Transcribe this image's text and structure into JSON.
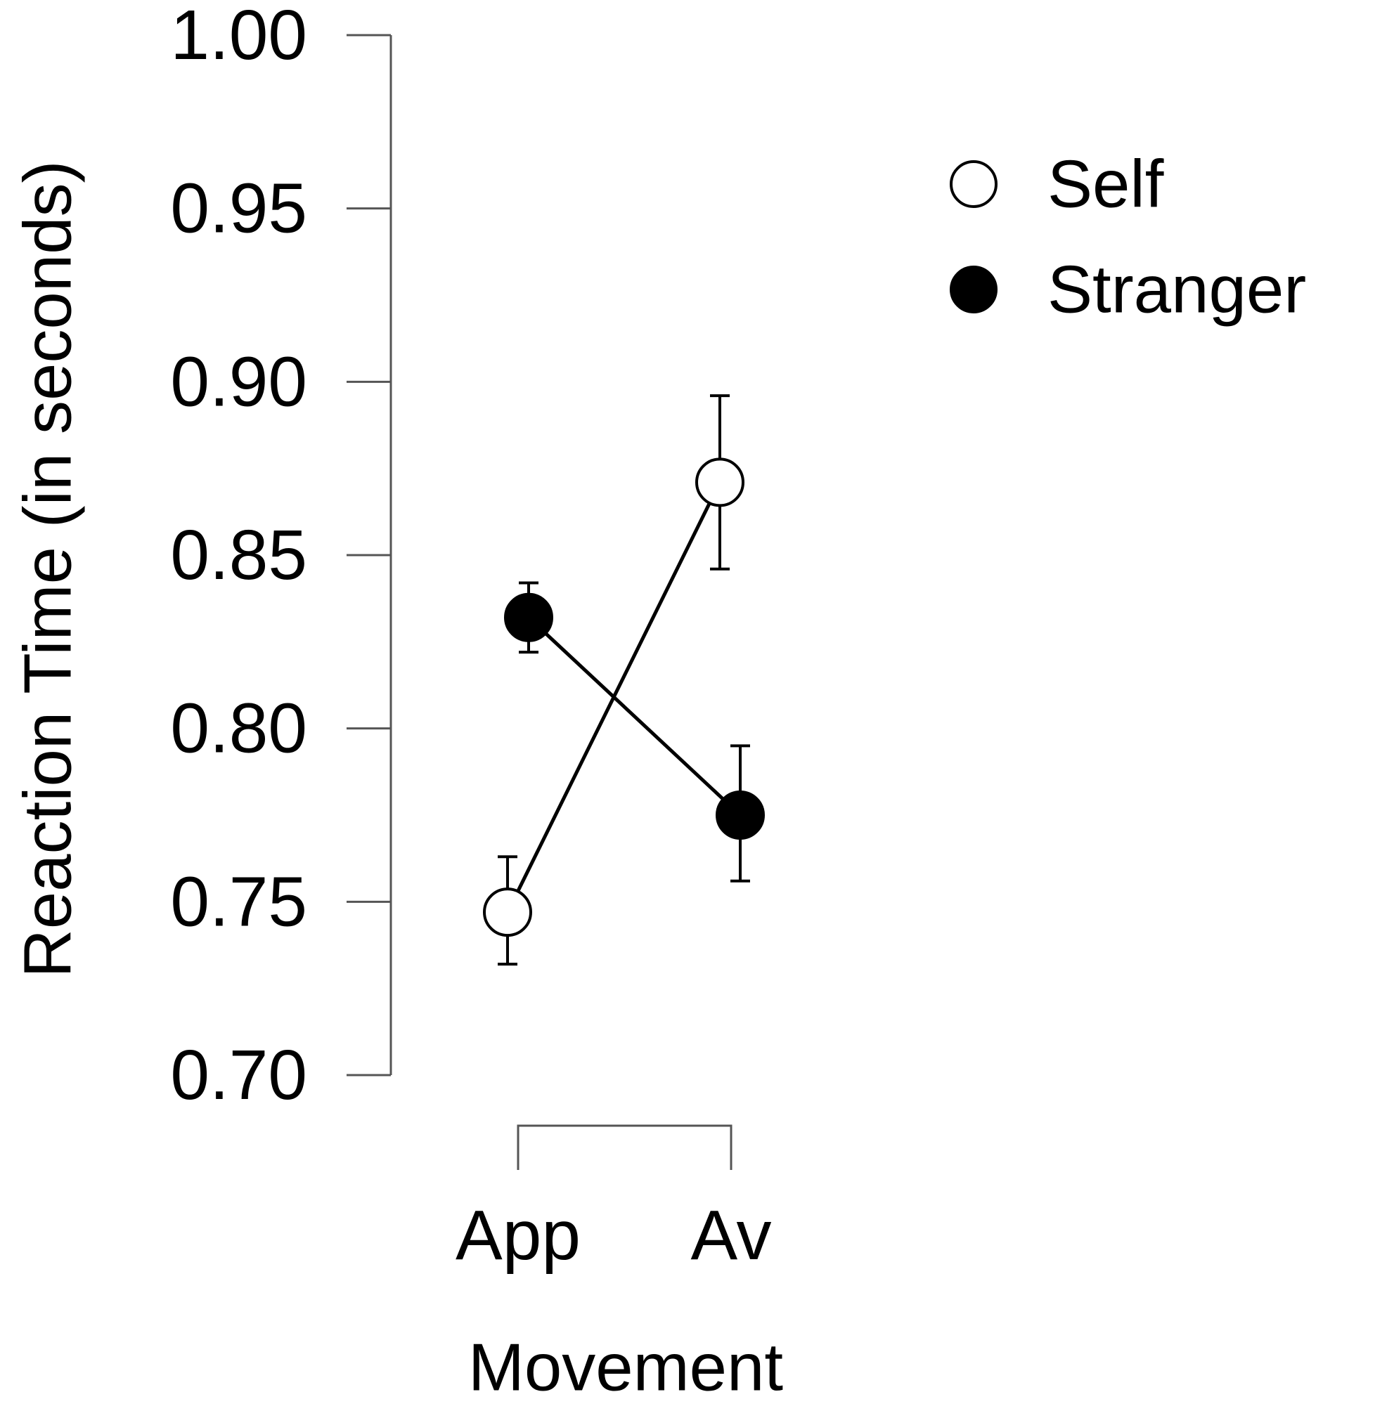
{
  "chart_data": {
    "type": "line",
    "xlabel": "Movement",
    "ylabel": "Reaction Time (in seconds)",
    "categories": [
      "App",
      "Av"
    ],
    "ylim": [
      0.7,
      1.0
    ],
    "yticks": [
      "0.70",
      "0.75",
      "0.80",
      "0.85",
      "0.90",
      "0.95",
      "1.00"
    ],
    "legend_position": "top-right",
    "grid": false,
    "series": [
      {
        "name": "Self",
        "marker": "open-circle",
        "color": "#000000",
        "values": [
          0.747,
          0.871
        ],
        "err_low": [
          0.732,
          0.846
        ],
        "err_high": [
          0.763,
          0.896
        ]
      },
      {
        "name": "Stranger",
        "marker": "filled-circle",
        "color": "#000000",
        "values": [
          0.832,
          0.775
        ],
        "err_low": [
          0.822,
          0.756
        ],
        "err_high": [
          0.842,
          0.795
        ]
      }
    ]
  }
}
